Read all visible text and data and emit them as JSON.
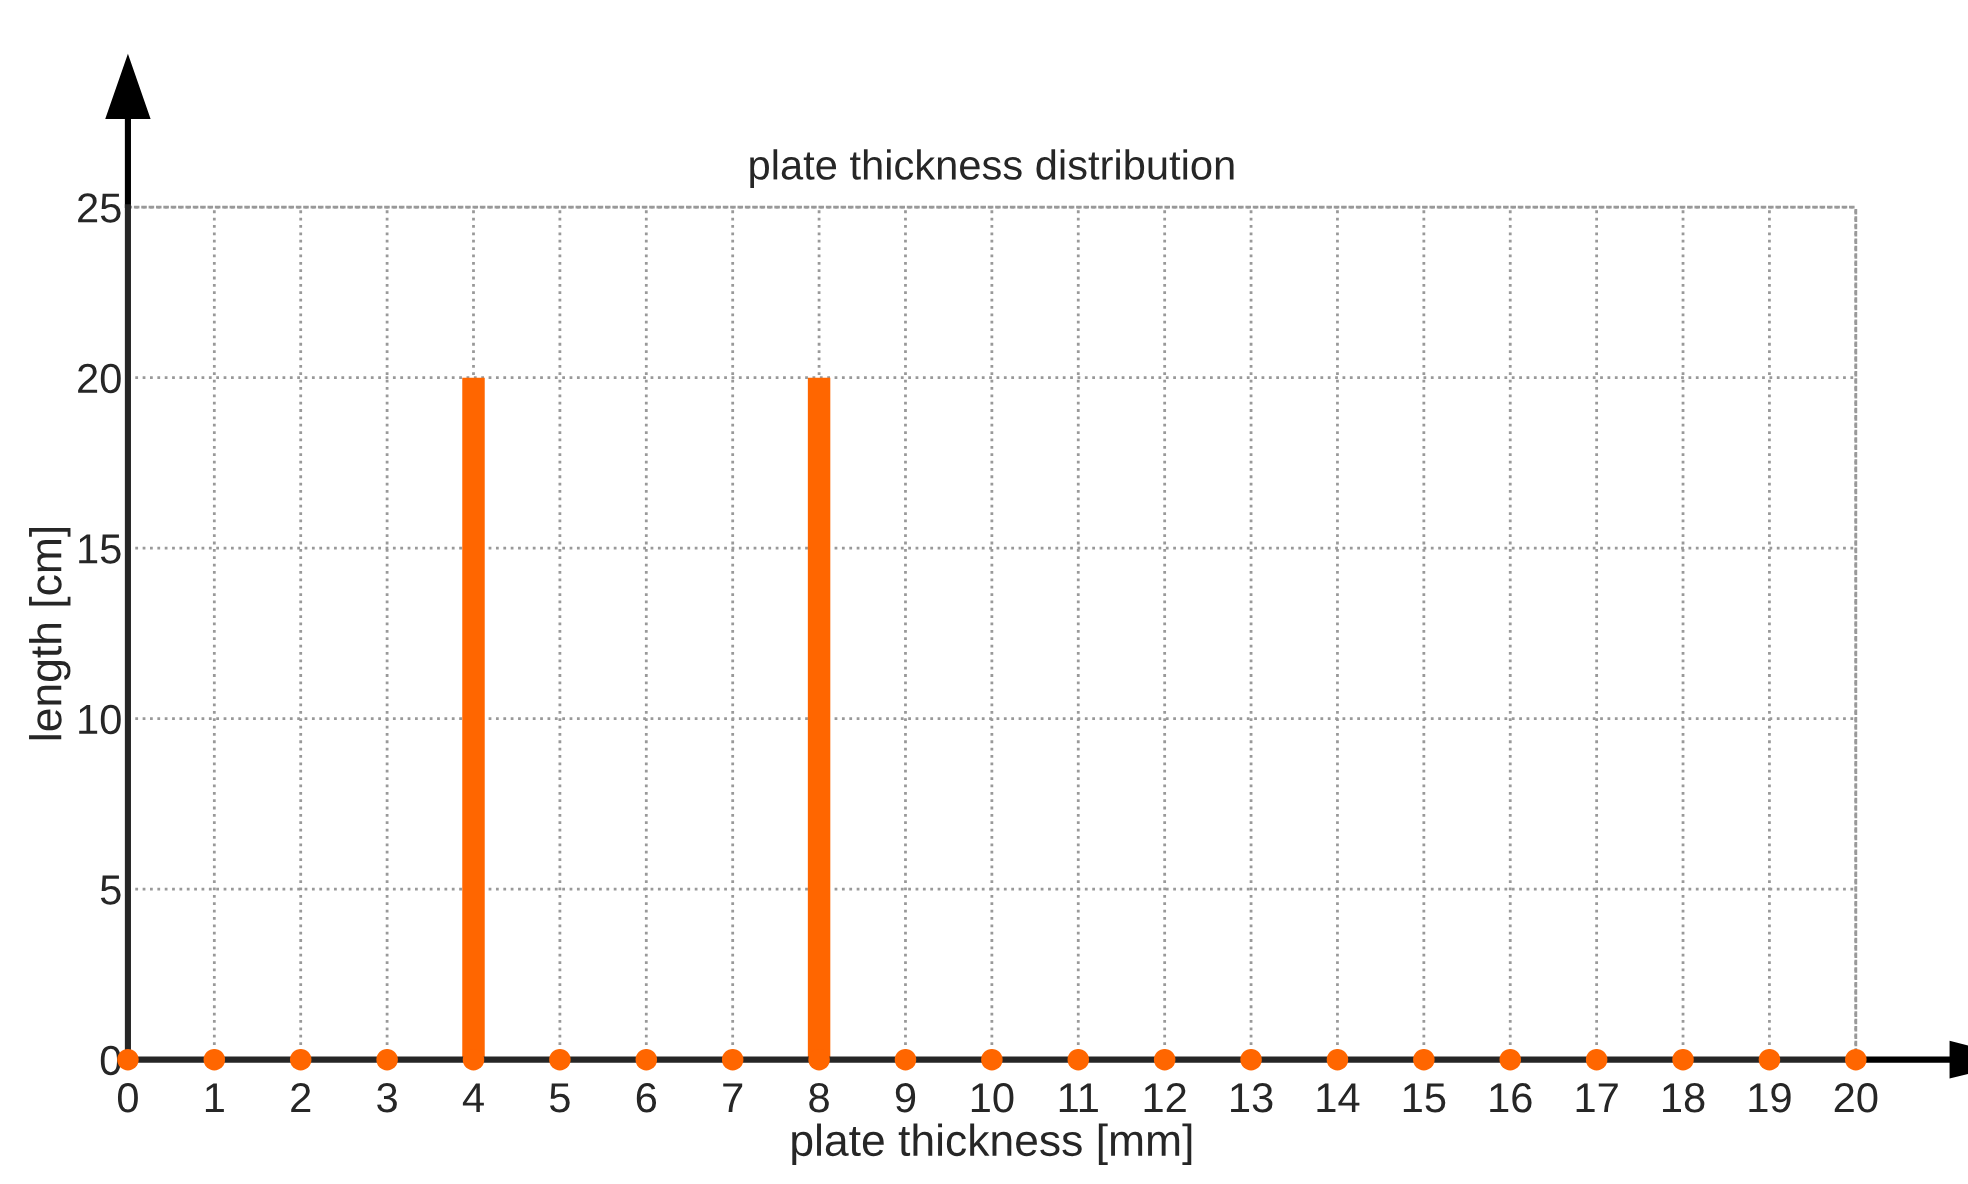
{
  "chart_data": {
    "type": "bar",
    "title": "plate thickness distribution",
    "xlabel": "plate thickness [mm]",
    "ylabel": "length [cm]",
    "x": [
      0,
      1,
      2,
      3,
      4,
      5,
      6,
      7,
      8,
      9,
      10,
      11,
      12,
      13,
      14,
      15,
      16,
      17,
      18,
      19,
      20
    ],
    "series": [
      {
        "color": "#ff6600",
        "values": [
          0,
          0,
          0,
          0,
          20,
          0,
          0,
          0,
          20,
          0,
          0,
          0,
          0,
          0,
          0,
          0,
          0,
          0,
          0,
          0,
          0
        ]
      },
      {
        "type": "scatter",
        "color": "#ff6600",
        "marker": "circle",
        "values": [
          0,
          0,
          0,
          0,
          0,
          0,
          0,
          0,
          0,
          0,
          0,
          0,
          0,
          0,
          0,
          0,
          0,
          0,
          0,
          0,
          0
        ]
      }
    ],
    "xlim": [
      0,
      20
    ],
    "ylim": [
      0,
      25
    ],
    "xticks": [
      0,
      1,
      2,
      3,
      4,
      5,
      6,
      7,
      8,
      9,
      10,
      11,
      12,
      13,
      14,
      15,
      16,
      17,
      18,
      19,
      20
    ],
    "yticks": [
      0,
      5,
      10,
      15,
      20,
      25
    ],
    "grid": true,
    "line_style": "dotted"
  }
}
